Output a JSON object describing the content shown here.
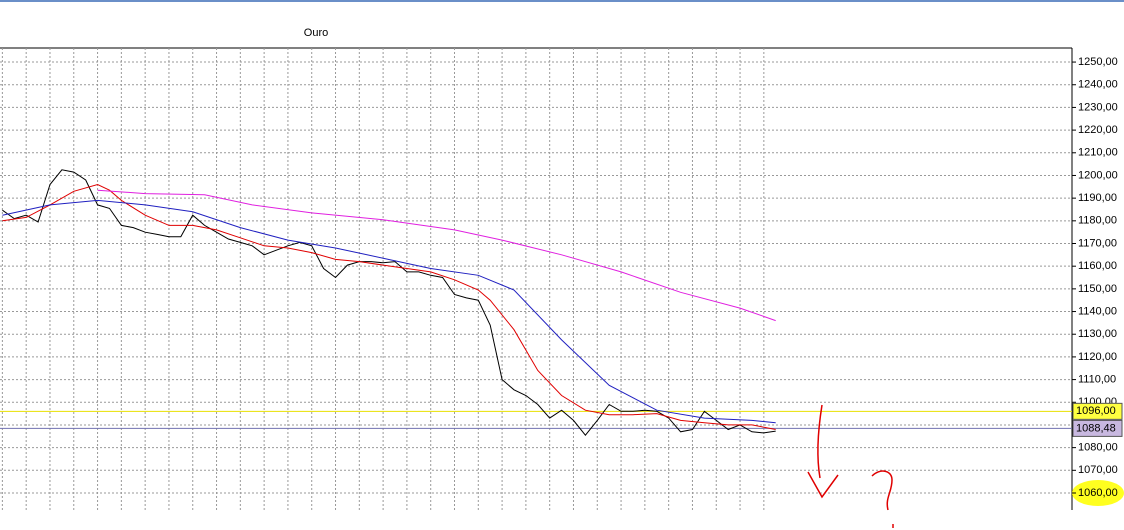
{
  "chart_data": {
    "type": "line",
    "title": "Ouro",
    "x": [
      0,
      1,
      2,
      3,
      4,
      5,
      6,
      7,
      8,
      9,
      10,
      11,
      12,
      13,
      14,
      15,
      16,
      17,
      18,
      19,
      20,
      21,
      22,
      23,
      24,
      25,
      26,
      27,
      28,
      29,
      30,
      31,
      32,
      33,
      34,
      35,
      36,
      37,
      38,
      39,
      40,
      41,
      42,
      43,
      44,
      45,
      46,
      47,
      48,
      49,
      50,
      51,
      52,
      53,
      54,
      55,
      56,
      57,
      58,
      59,
      60,
      61,
      62,
      63,
      64,
      65
    ],
    "series": [
      {
        "color": "#000000",
        "values": [
          1184.7,
          1181,
          1182.5,
          1179.5,
          1196,
          1202.5,
          1201.5,
          1198,
          1187,
          1185.5,
          1178,
          1177,
          1175,
          1174,
          1173,
          1173,
          1182.5,
          1178,
          1175,
          1172,
          1170.5,
          1169,
          1165,
          1167,
          1169,
          1170.5,
          1169,
          1159,
          1155,
          1160.5,
          1162,
          1162,
          1161.5,
          1162,
          1157.5,
          1157.5,
          1156,
          1155,
          1147.5,
          1146,
          1145,
          1134,
          1110,
          1105.5,
          1103,
          1099,
          1093,
          1096.5,
          1092,
          1085.5,
          1092,
          1099,
          1096,
          1096,
          1096.5,
          1096,
          1093,
          1087,
          1088,
          1096,
          1092,
          1088,
          1090,
          1087,
          1086.5,
          1087.3
        ]
      },
      {
        "color": "#e00000",
        "x": [
          0,
          2,
          4,
          6,
          8,
          9,
          10,
          12,
          14,
          16,
          18,
          20,
          22,
          24,
          26,
          28,
          30,
          32,
          34,
          36,
          38,
          40,
          41,
          43,
          45,
          47,
          49,
          51,
          53,
          55,
          57,
          59,
          61,
          63,
          65
        ],
        "values": [
          1180,
          1181.5,
          1187,
          1193,
          1196,
          1193.5,
          1189,
          1182.5,
          1178,
          1178,
          1176,
          1172.5,
          1169,
          1168,
          1166,
          1163,
          1162,
          1160.5,
          1159,
          1157.5,
          1154,
          1149.5,
          1145,
          1132,
          1114,
          1103,
          1096.5,
          1094.5,
          1094.5,
          1095,
          1092,
          1091,
          1090,
          1090,
          1088
        ]
      },
      {
        "color": "#2020c0",
        "x": [
          0,
          4,
          8,
          12,
          16,
          20,
          24,
          28,
          32,
          36,
          40,
          43,
          47,
          51,
          55,
          59,
          63,
          65
        ],
        "values": [
          1182.5,
          1187,
          1189,
          1187,
          1184,
          1177,
          1171.5,
          1168,
          1163.5,
          1159,
          1156,
          1149.5,
          1127.5,
          1107.5,
          1096.5,
          1093,
          1092,
          1091
        ]
      },
      {
        "color": "#e020e0",
        "x": [
          8,
          12,
          17,
          21,
          26,
          32,
          38,
          42,
          47,
          52,
          57,
          62,
          65
        ],
        "values": [
          1193.5,
          1192,
          1191.5,
          1187,
          1183.5,
          1180.5,
          1176,
          1171.5,
          1165,
          1157.5,
          1148.5,
          1141.5,
          1136
        ]
      }
    ],
    "reference_lines": [
      {
        "value": 1096,
        "label": "1096,00",
        "color": "#e8e000",
        "box": "#ffff40"
      },
      {
        "value": 1088.48,
        "label": "1088,48",
        "color": "#7070b0",
        "box": "#c8b8e0"
      }
    ],
    "xlim": [
      -0.2,
      89.9
    ],
    "xticks": [
      0,
      2,
      4,
      6,
      8,
      10,
      12,
      14,
      16,
      18,
      20,
      22,
      24,
      26,
      28,
      30,
      32,
      34,
      36,
      38,
      40,
      42,
      44,
      46,
      48,
      50,
      52,
      54,
      56,
      58,
      60,
      62,
      64
    ],
    "ylim": [
      1052.5,
      1256.2
    ],
    "yticks": [
      {
        "value": 1060,
        "label": "1060,00"
      },
      {
        "value": 1070,
        "label": "1070,00"
      },
      {
        "value": 1080,
        "label": "1080,00"
      },
      {
        "value": 1090,
        "label": "1090,00"
      },
      {
        "value": 1100,
        "label": "1100,00"
      },
      {
        "value": 1110,
        "label": "1110,00"
      },
      {
        "value": 1120,
        "label": "1120,00"
      },
      {
        "value": 1130,
        "label": "1130,00"
      },
      {
        "value": 1140,
        "label": "1140,00"
      },
      {
        "value": 1150,
        "label": "1150,00"
      },
      {
        "value": 1160,
        "label": "1160,00"
      },
      {
        "value": 1170,
        "label": "1170,00"
      },
      {
        "value": 1180,
        "label": "1180,00"
      },
      {
        "value": 1190,
        "label": "1190,00"
      },
      {
        "value": 1200,
        "label": "1200,00"
      },
      {
        "value": 1210,
        "label": "1210,00"
      },
      {
        "value": 1220,
        "label": "1220,00"
      },
      {
        "value": 1230,
        "label": "1230,00"
      },
      {
        "value": 1240,
        "label": "1240,00"
      },
      {
        "value": 1250,
        "label": "1250,00"
      }
    ],
    "grid": true
  }
}
